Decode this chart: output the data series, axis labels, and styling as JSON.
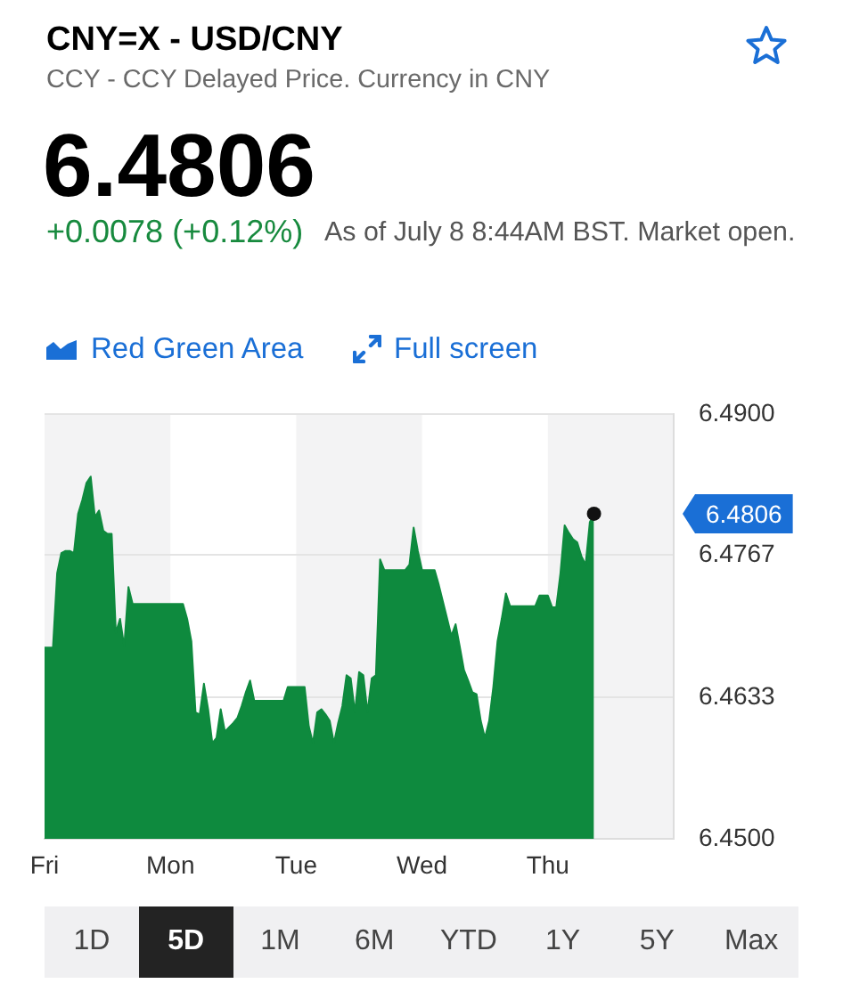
{
  "chart_data": {
    "type": "area",
    "title": "CNY=X - USD/CNY",
    "subtitle": "CCY - CCY Delayed Price. Currency in CNY",
    "categories": [
      "Fri",
      null,
      null,
      null,
      null,
      null,
      null,
      null,
      null,
      null,
      null,
      null,
      null,
      null,
      null,
      null,
      null,
      null,
      null,
      null,
      null,
      null,
      null,
      null,
      null,
      null,
      null,
      null,
      null,
      null,
      "Mon",
      null,
      null,
      null,
      null,
      null,
      null,
      null,
      null,
      null,
      null,
      null,
      null,
      null,
      null,
      null,
      null,
      null,
      null,
      null,
      null,
      null,
      null,
      null,
      null,
      null,
      null,
      null,
      null,
      null,
      "Tue",
      null,
      null,
      null,
      null,
      null,
      null,
      null,
      null,
      null,
      null,
      null,
      null,
      null,
      null,
      null,
      null,
      null,
      null,
      null,
      null,
      null,
      null,
      null,
      null,
      null,
      null,
      null,
      null,
      null,
      "Wed",
      null,
      null,
      null,
      null,
      null,
      null,
      null,
      null,
      null,
      null,
      null,
      null,
      null,
      null,
      null,
      null,
      null,
      null,
      null,
      null,
      null,
      null,
      null,
      null,
      null,
      null,
      null,
      null,
      null,
      "Thu",
      null,
      null,
      null,
      null,
      null,
      null,
      null,
      null,
      null,
      null,
      null,
      null,
      null,
      null,
      null,
      null,
      null,
      null,
      null,
      null,
      null,
      null,
      null,
      null,
      null,
      null,
      null,
      null,
      null,
      null
    ],
    "values": [
      6.468,
      6.468,
      6.468,
      6.475,
      6.4769,
      6.4771,
      6.4771,
      6.4769,
      6.4806,
      6.4819,
      6.4835,
      6.4841,
      6.4803,
      6.4809,
      6.479,
      6.4787,
      6.4787,
      6.4694,
      6.4707,
      6.4681,
      6.4737,
      6.4721,
      6.4721,
      6.4721,
      6.4721,
      6.4721,
      6.4721,
      6.4721,
      6.4721,
      6.4721,
      6.4721,
      6.4721,
      6.4721,
      6.4721,
      6.4707,
      6.4686,
      6.4619,
      6.4617,
      6.4646,
      6.4622,
      6.459,
      6.4595,
      6.4622,
      6.4601,
      6.4605,
      6.4609,
      6.4614,
      6.4625,
      6.4638,
      6.4649,
      6.463,
      6.463,
      6.463,
      6.463,
      6.463,
      6.463,
      6.463,
      6.463,
      6.4643,
      6.4643,
      6.4643,
      6.4643,
      6.4643,
      6.4606,
      6.459,
      6.4619,
      6.4622,
      6.4617,
      6.4611,
      6.459,
      6.4609,
      6.4625,
      6.4654,
      6.4651,
      6.4619,
      6.4657,
      6.4654,
      6.4619,
      6.4651,
      6.4654,
      6.4763,
      6.4753,
      6.4753,
      6.4753,
      6.4753,
      6.4753,
      6.4753,
      6.4758,
      6.4793,
      6.4771,
      6.4753,
      6.4753,
      6.4753,
      6.4753,
      6.4739,
      6.4723,
      6.4707,
      6.4691,
      6.4702,
      6.4681,
      6.4659,
      6.4649,
      6.4638,
      6.4636,
      6.4611,
      6.4595,
      6.4611,
      6.4643,
      6.4686,
      6.4707,
      6.4731,
      6.4719,
      6.4719,
      6.4719,
      6.4719,
      6.4719,
      6.4719,
      6.4719,
      6.4729,
      6.4729,
      6.4729,
      6.4718,
      6.4718,
      6.475,
      6.4795,
      6.4788,
      6.4782,
      6.4779,
      6.4766,
      6.4758,
      6.4798,
      6.4806,
      null,
      null,
      null,
      null,
      null,
      null,
      null,
      null,
      null,
      null,
      null,
      null,
      null,
      null,
      null,
      null,
      null,
      null,
      null
    ],
    "color": "#0e8a3e",
    "marker": "none",
    "grid": "y",
    "ylim": [
      6.45,
      6.49
    ],
    "yticks": [
      {
        "value": 6.45,
        "label": "6.4500"
      },
      6.4633,
      6.4767,
      {
        "value": 6.49,
        "label": "6.4900"
      }
    ],
    "bands": [
      {
        "axis": "x",
        "from": "Mon",
        "to": "Tue",
        "color": "#ffffff"
      },
      {
        "axis": "x",
        "from": "Wed",
        "to": "Thu",
        "color": "#ffffff"
      }
    ],
    "annotations": [
      "6.4806",
      "+0.0078 (+0.12%)",
      "As of July 8 8:44AM BST. Market open.",
      "Red Green Area",
      "Full screen",
      "1D",
      "5D",
      "1M",
      "6M",
      "YTD",
      "1Y",
      "5Y",
      "Max",
      "6.4806"
    ]
  }
}
